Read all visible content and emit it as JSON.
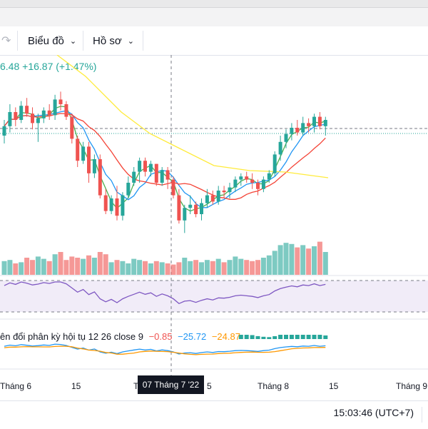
{
  "toolbar": {
    "redo_icon": "redo-arrow",
    "chart_menu_label": "Biểu đồ",
    "profile_menu_label": "Hồ sơ"
  },
  "legend": {
    "price_fragment": "6.48",
    "change_abs": "+16.87",
    "change_pct": "(+1.47%)"
  },
  "macd": {
    "label": "ên đổi phân kỳ hội tụ 12 26 close 9",
    "hist_value": "−0.85",
    "macd_value": "−25.72",
    "signal_value": "−24.87",
    "hist_color": "#ef5350",
    "macd_color": "#2196f3",
    "signal_color": "#ff9800"
  },
  "time_axis": {
    "labels": [
      "Tháng 6",
      "15",
      "T",
      "5",
      "Tháng 8",
      "15",
      "Tháng 9"
    ],
    "crosshair_label": "07 Tháng 7 '22"
  },
  "status": {
    "clock": "15:03:46 (UTC+7)"
  },
  "colors": {
    "up": "#26a69a",
    "down": "#ef5350",
    "ma_fast": "#4caf50",
    "ma_mid": "#2196f3",
    "ma_slow": "#f44336",
    "ma_long": "#ffeb3b",
    "rsi": "#7e57c2"
  },
  "chart_data": {
    "type": "candlestick",
    "candles": [
      {
        "o": 60,
        "h": 70,
        "l": 55,
        "c": 66
      },
      {
        "o": 66,
        "h": 80,
        "l": 62,
        "c": 75
      },
      {
        "o": 75,
        "h": 78,
        "l": 66,
        "c": 70
      },
      {
        "o": 70,
        "h": 82,
        "l": 68,
        "c": 79
      },
      {
        "o": 79,
        "h": 84,
        "l": 72,
        "c": 74
      },
      {
        "o": 74,
        "h": 78,
        "l": 64,
        "c": 68
      },
      {
        "o": 68,
        "h": 74,
        "l": 56,
        "c": 71
      },
      {
        "o": 71,
        "h": 78,
        "l": 68,
        "c": 76
      },
      {
        "o": 76,
        "h": 80,
        "l": 70,
        "c": 73
      },
      {
        "o": 73,
        "h": 86,
        "l": 70,
        "c": 83
      },
      {
        "o": 83,
        "h": 88,
        "l": 76,
        "c": 80
      },
      {
        "o": 80,
        "h": 82,
        "l": 70,
        "c": 72
      },
      {
        "o": 72,
        "h": 74,
        "l": 55,
        "c": 58
      },
      {
        "o": 58,
        "h": 60,
        "l": 40,
        "c": 44
      },
      {
        "o": 44,
        "h": 56,
        "l": 42,
        "c": 53
      },
      {
        "o": 53,
        "h": 56,
        "l": 30,
        "c": 36
      },
      {
        "o": 36,
        "h": 48,
        "l": 33,
        "c": 45
      },
      {
        "o": 45,
        "h": 48,
        "l": 20,
        "c": 22
      },
      {
        "o": 22,
        "h": 26,
        "l": 10,
        "c": 12
      },
      {
        "o": 12,
        "h": 22,
        "l": 10,
        "c": 20
      },
      {
        "o": 20,
        "h": 28,
        "l": 6,
        "c": 9
      },
      {
        "o": 9,
        "h": 24,
        "l": 6,
        "c": 22
      },
      {
        "o": 22,
        "h": 34,
        "l": 20,
        "c": 30
      },
      {
        "o": 30,
        "h": 40,
        "l": 28,
        "c": 37
      },
      {
        "o": 37,
        "h": 46,
        "l": 30,
        "c": 44
      },
      {
        "o": 44,
        "h": 46,
        "l": 34,
        "c": 37
      },
      {
        "o": 37,
        "h": 44,
        "l": 34,
        "c": 42
      },
      {
        "o": 42,
        "h": 42,
        "l": 28,
        "c": 30
      },
      {
        "o": 30,
        "h": 40,
        "l": 28,
        "c": 38
      },
      {
        "o": 38,
        "h": 40,
        "l": 26,
        "c": 32
      },
      {
        "o": 32,
        "h": 34,
        "l": 20,
        "c": 22
      },
      {
        "o": 22,
        "h": 26,
        "l": 4,
        "c": 6
      },
      {
        "o": 6,
        "h": 16,
        "l": -2,
        "c": 14
      },
      {
        "o": 14,
        "h": 22,
        "l": 10,
        "c": 16
      },
      {
        "o": 16,
        "h": 18,
        "l": 8,
        "c": 10
      },
      {
        "o": 10,
        "h": 20,
        "l": 6,
        "c": 17
      },
      {
        "o": 17,
        "h": 26,
        "l": 14,
        "c": 22
      },
      {
        "o": 22,
        "h": 25,
        "l": 16,
        "c": 18
      },
      {
        "o": 18,
        "h": 28,
        "l": 16,
        "c": 25
      },
      {
        "o": 25,
        "h": 28,
        "l": 20,
        "c": 24
      },
      {
        "o": 24,
        "h": 30,
        "l": 20,
        "c": 27
      },
      {
        "o": 27,
        "h": 34,
        "l": 24,
        "c": 32
      },
      {
        "o": 32,
        "h": 36,
        "l": 28,
        "c": 34
      },
      {
        "o": 34,
        "h": 37,
        "l": 30,
        "c": 32
      },
      {
        "o": 32,
        "h": 36,
        "l": 26,
        "c": 30
      },
      {
        "o": 30,
        "h": 32,
        "l": 22,
        "c": 26
      },
      {
        "o": 26,
        "h": 34,
        "l": 24,
        "c": 32
      },
      {
        "o": 32,
        "h": 38,
        "l": 30,
        "c": 36
      },
      {
        "o": 36,
        "h": 50,
        "l": 34,
        "c": 48
      },
      {
        "o": 48,
        "h": 60,
        "l": 44,
        "c": 56
      },
      {
        "o": 56,
        "h": 64,
        "l": 52,
        "c": 61
      },
      {
        "o": 61,
        "h": 68,
        "l": 57,
        "c": 65
      },
      {
        "o": 65,
        "h": 70,
        "l": 60,
        "c": 62
      },
      {
        "o": 62,
        "h": 72,
        "l": 60,
        "c": 68
      },
      {
        "o": 68,
        "h": 71,
        "l": 62,
        "c": 66
      },
      {
        "o": 66,
        "h": 74,
        "l": 62,
        "c": 72
      },
      {
        "o": 72,
        "h": 75,
        "l": 64,
        "c": 66
      },
      {
        "o": 66,
        "h": 72,
        "l": 60,
        "c": 70
      }
    ],
    "volume": [
      52,
      53,
      50,
      51,
      55,
      53,
      56,
      54,
      52,
      58,
      60,
      53,
      56,
      55,
      54,
      57,
      55,
      60,
      58,
      51,
      53,
      52,
      50,
      54,
      53,
      52,
      50,
      52,
      51,
      50,
      49,
      51,
      55,
      52,
      53,
      51,
      53,
      52,
      54,
      51,
      53,
      56,
      54,
      53,
      52,
      53,
      55,
      57,
      61,
      66,
      68,
      67,
      64,
      66,
      63,
      65,
      69,
      60
    ]
  }
}
